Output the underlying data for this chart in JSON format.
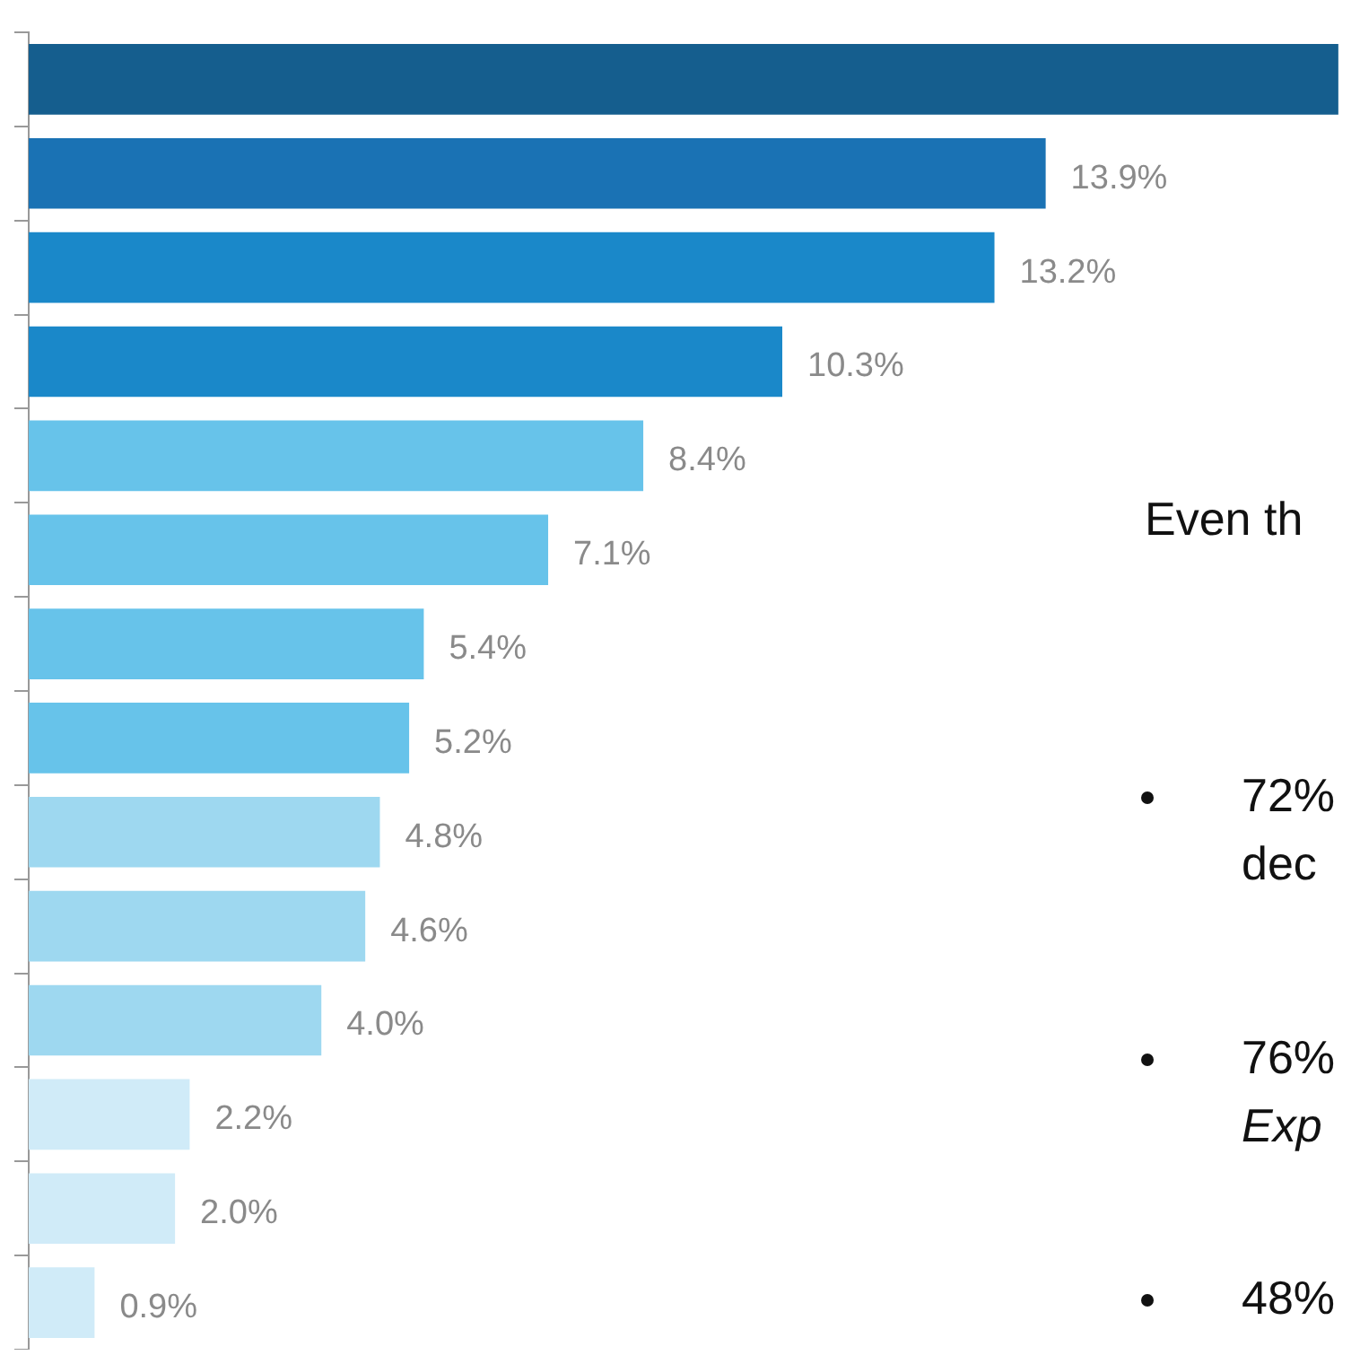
{
  "chart_data": {
    "type": "bar",
    "orientation": "horizontal",
    "categories": [
      null,
      null,
      null,
      null,
      null,
      null,
      null,
      null,
      null,
      null,
      null,
      null,
      null,
      null
    ],
    "values": [
      17.9,
      13.9,
      13.2,
      10.3,
      8.4,
      7.1,
      5.4,
      5.2,
      4.8,
      4.6,
      4.0,
      2.2,
      2.0,
      0.9
    ],
    "colors": [
      "#155e8e",
      "#1a72b4",
      "#1a88c9",
      "#1a88c9",
      "#67c3ea",
      "#67c3ea",
      "#67c3ea",
      "#67c3ea",
      "#9ed8f0",
      "#9ed8f0",
      "#9ed8f0",
      "#d0ebf8",
      "#d0ebf8",
      "#d0ebf8"
    ],
    "value_labels": [
      null,
      "13.9%",
      "13.2%",
      "10.3%",
      "8.4%",
      "7.1%",
      "5.4%",
      "5.2%",
      "4.8%",
      "4.6%",
      "4.0%",
      "2.2%",
      "2.0%",
      "0.9%"
    ],
    "annotations": [
      "Even th",
      "72%\ndec",
      "76%\nExp",
      "48%"
    ],
    "grid": false,
    "legend": false
  }
}
